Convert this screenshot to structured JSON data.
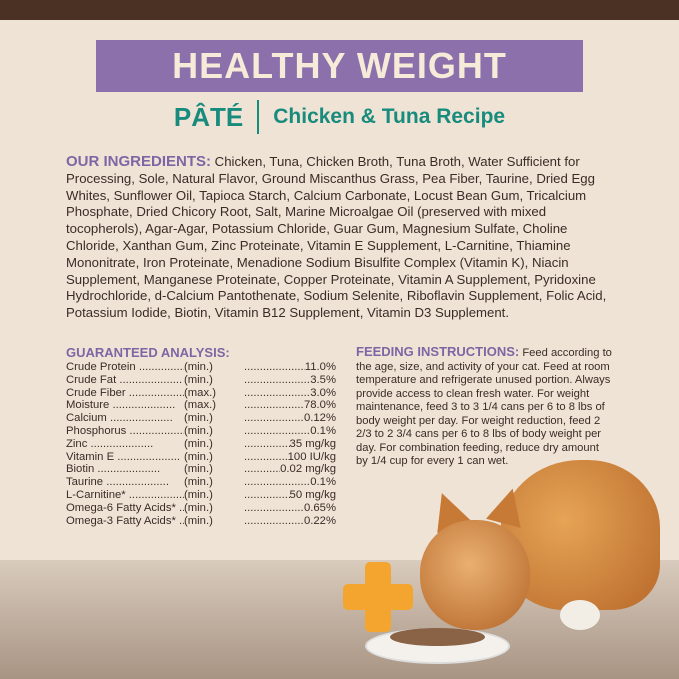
{
  "banner": {
    "title": "HEALTHY WEIGHT"
  },
  "subtitle": {
    "format": "PÂTÉ",
    "recipe": "Chicken & Tuna Recipe"
  },
  "ingredients": {
    "heading": "OUR INGREDIENTS:",
    "text": " Chicken, Tuna, Chicken Broth, Tuna Broth, Water Sufficient for Processing, Sole, Natural Flavor, Ground Miscanthus Grass, Pea Fiber, Taurine, Dried Egg Whites, Sunflower Oil, Tapioca Starch, Calcium Carbonate, Locust Bean Gum, Tricalcium Phosphate, Dried Chicory Root, Salt, Marine Microalgae Oil (preserved with mixed tocopherols), Agar-Agar, Potassium Chloride, Guar Gum, Magnesium Sulfate, Choline Chloride, Xanthan Gum, Zinc Proteinate, Vitamin E Supplement, L-Carnitine, Thiamine Mononitrate, Iron Proteinate, Menadione Sodium Bisulfite Complex (Vitamin K), Niacin Supplement, Manganese Proteinate, Copper Proteinate, Vitamin A Supplement, Pyridoxine Hydrochloride, d-Calcium Pantothenate, Sodium Selenite, Riboflavin Supplement, Folic Acid, Potassium Iodide, Biotin, Vitamin B12 Supplement, Vitamin D3 Supplement."
  },
  "analysis": {
    "heading": "GUARANTEED ANALYSIS:",
    "rows": [
      {
        "name": "Crude Protein",
        "qual": "(min.)",
        "value": "11.0%"
      },
      {
        "name": "Crude Fat",
        "qual": "(min.)",
        "value": "3.5%"
      },
      {
        "name": "Crude Fiber",
        "qual": "(max.)",
        "value": "3.0%"
      },
      {
        "name": "Moisture",
        "qual": "(max.)",
        "value": "78.0%"
      },
      {
        "name": "Calcium",
        "qual": "(min.)",
        "value": "0.12%"
      },
      {
        "name": "Phosphorus",
        "qual": "(min.)",
        "value": "0.1%"
      },
      {
        "name": "Zinc",
        "qual": "(min.)",
        "value": "35 mg/kg"
      },
      {
        "name": "Vitamin E",
        "qual": "(min.)",
        "value": "100 IU/kg"
      },
      {
        "name": "Biotin",
        "qual": "(min.)",
        "value": "0.02 mg/kg"
      },
      {
        "name": "Taurine",
        "qual": "(min.)",
        "value": "0.1%"
      },
      {
        "name": "L-Carnitine*",
        "qual": "(min.)",
        "value": "50 mg/kg"
      },
      {
        "name": "Omega-6 Fatty Acids*",
        "qual": "(min.)",
        "value": "0.65%"
      },
      {
        "name": "Omega-3 Fatty Acids*",
        "qual": "(min.)",
        "value": "0.22%"
      }
    ]
  },
  "feeding": {
    "heading": "FEEDING INSTRUCTIONS:",
    "text": " Feed according to the age, size, and activity of your cat. Feed at room temperature and refrigerate unused portion. Always provide access to clean fresh water. For weight maintenance, feed 3 to 3 1/4 cans per 6 to 8 lbs of body weight per day. For weight reduction, feed 2 2/3 to 2 3/4 cans per 6 to 8 lbs of body weight per day. For combination feeding, reduce dry amount by 1/4 cup for every 1 can wet."
  },
  "colors": {
    "banner": "#8b70ab",
    "accent": "#178b7c",
    "heading": "#7d66a3",
    "topbar": "#4b3024",
    "plus": "#f3a530"
  }
}
